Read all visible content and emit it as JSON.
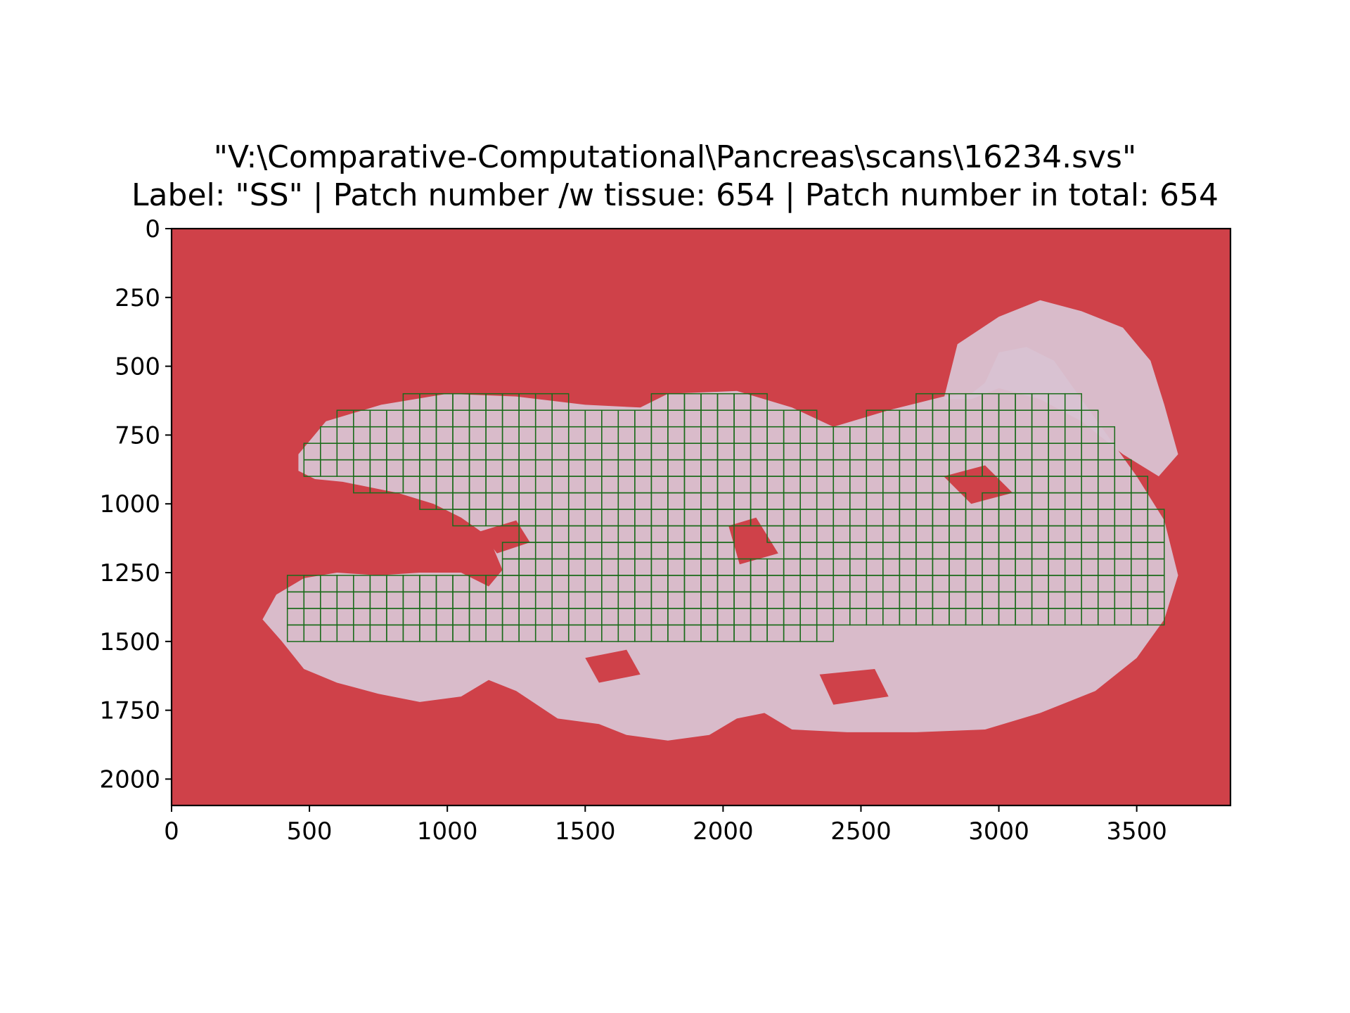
{
  "figure": {
    "title_line1": "\"V:\\Comparative-Computational\\Pancreas\\scans\\16234.svs\"",
    "title_line2": "Label: \"SS\" | Patch number /w tissue: 654 | Patch number in total: 654"
  },
  "chart_data": {
    "type": "heatmap",
    "title": "\"V:\\Comparative-Computational\\Pancreas\\scans\\16234.svs\"",
    "subtitle": "Label: \"SS\" | Patch number /w tissue: 654 | Patch number in total: 654",
    "xlabel": "",
    "ylabel": "",
    "xlim": [
      0,
      3840
    ],
    "ylim": [
      2096,
      0
    ],
    "x_ticks": [
      0,
      500,
      1000,
      1500,
      2000,
      2500,
      3000,
      3500
    ],
    "y_ticks": [
      0,
      250,
      500,
      750,
      1000,
      1250,
      1500,
      1750,
      2000
    ],
    "y_inverted": true,
    "grid": false,
    "background_color": "#cf4149",
    "tissue_color": "#d9c2d2",
    "patch_edge_color": "#1a6b1a",
    "patch_size": 60,
    "patch_count_with_tissue": 654,
    "patch_count_total": 654
  }
}
